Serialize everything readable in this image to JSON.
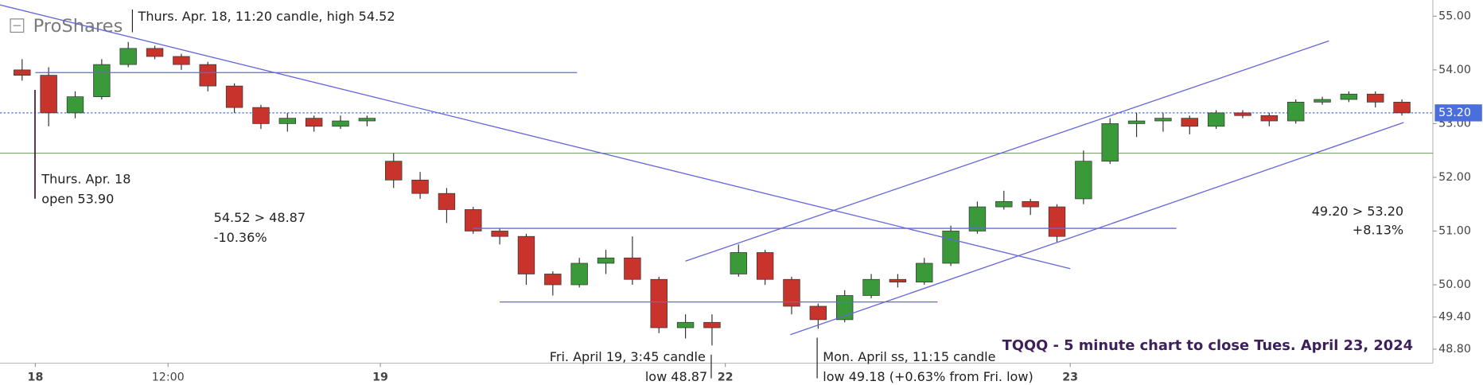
{
  "watermark": "ProShares",
  "chart_data": {
    "type": "candlestick",
    "title": "TQQQ - 5 minute chart to close Tues. April 23, 2024",
    "x": [
      -3,
      3,
      9,
      15,
      21,
      27,
      33,
      39,
      45,
      51,
      57,
      63,
      69,
      75,
      81,
      87,
      93,
      99,
      105,
      111,
      117,
      123,
      129,
      135,
      141,
      147,
      153,
      159,
      165,
      171,
      177,
      183,
      189,
      195,
      201,
      207,
      213,
      219,
      225,
      231,
      237,
      243,
      249,
      255,
      261,
      267,
      273,
      279,
      285,
      291,
      297,
      303,
      309
    ],
    "open": [
      54.0,
      53.9,
      53.2,
      53.5,
      54.1,
      54.4,
      54.25,
      54.1,
      53.7,
      53.3,
      53.0,
      53.1,
      52.95,
      53.05,
      52.3,
      51.95,
      51.7,
      51.4,
      51.0,
      50.9,
      50.2,
      50.0,
      50.4,
      50.5,
      50.1,
      49.2,
      49.3,
      50.2,
      50.6,
      50.1,
      49.6,
      49.35,
      49.8,
      50.1,
      50.05,
      50.4,
      51.0,
      51.45,
      51.55,
      51.45,
      51.6,
      52.3,
      53.0,
      53.05,
      53.1,
      52.95,
      53.2,
      53.15,
      53.05,
      53.4,
      53.45,
      53.55,
      53.4
    ],
    "high": [
      54.2,
      54.05,
      53.6,
      54.2,
      54.52,
      54.45,
      54.3,
      54.15,
      53.75,
      53.35,
      53.2,
      53.15,
      53.15,
      53.15,
      52.45,
      52.1,
      51.8,
      51.45,
      51.05,
      50.95,
      50.25,
      50.5,
      50.65,
      50.9,
      50.15,
      49.45,
      49.45,
      50.75,
      50.65,
      50.15,
      49.65,
      49.9,
      50.2,
      50.2,
      50.5,
      51.1,
      51.55,
      51.75,
      51.6,
      51.5,
      52.5,
      53.1,
      53.2,
      53.2,
      53.15,
      53.25,
      53.25,
      53.2,
      53.45,
      53.5,
      53.6,
      53.6,
      53.45
    ],
    "low": [
      53.8,
      52.95,
      53.1,
      53.45,
      54.05,
      54.2,
      54.0,
      53.6,
      53.2,
      52.9,
      52.85,
      52.85,
      52.9,
      52.95,
      51.8,
      51.6,
      51.15,
      50.95,
      50.75,
      50.0,
      49.8,
      49.95,
      50.2,
      50.0,
      49.1,
      49.0,
      48.87,
      50.15,
      50.0,
      49.45,
      49.18,
      49.3,
      49.75,
      49.95,
      50.0,
      50.35,
      50.95,
      51.4,
      51.3,
      50.8,
      51.5,
      52.25,
      52.75,
      52.85,
      52.8,
      52.9,
      53.1,
      52.95,
      53.0,
      53.35,
      53.4,
      53.3,
      53.15
    ],
    "close": [
      53.9,
      53.2,
      53.5,
      54.1,
      54.4,
      54.25,
      54.1,
      53.7,
      53.3,
      53.0,
      53.1,
      52.95,
      53.05,
      53.1,
      51.95,
      51.7,
      51.4,
      51.0,
      50.9,
      50.2,
      50.0,
      50.4,
      50.5,
      50.1,
      49.2,
      49.3,
      49.2,
      50.6,
      50.1,
      49.6,
      49.35,
      49.8,
      50.1,
      50.05,
      50.4,
      51.0,
      51.45,
      51.55,
      51.45,
      50.9,
      52.3,
      53.0,
      53.05,
      53.1,
      52.95,
      53.2,
      53.15,
      53.05,
      53.4,
      53.45,
      53.55,
      53.4,
      53.2
    ],
    "up_color": "#3a9a3a",
    "down_color": "#c8342c",
    "xlim": [
      -8,
      316
    ],
    "xticks": [
      {
        "value": 0,
        "label": "18"
      },
      {
        "value": 30,
        "label": "12:00"
      },
      {
        "value": 78,
        "label": "19"
      },
      {
        "value": 156,
        "label": "22"
      },
      {
        "value": 234,
        "label": "23"
      }
    ],
    "ylim": [
      48.54,
      55.3
    ],
    "yticks": [
      {
        "value": 55,
        "label": "55.00"
      },
      {
        "value": 54,
        "label": "54.00"
      },
      {
        "value": 53,
        "label": "53.00"
      },
      {
        "value": 52,
        "label": "52.00"
      },
      {
        "value": 51,
        "label": "51.00"
      },
      {
        "value": 50,
        "label": "50.00"
      },
      {
        "value": 49.4,
        "label": "49.40"
      },
      {
        "value": 48.8,
        "label": "48.80"
      }
    ],
    "last_price": {
      "value": 53.2,
      "label": "53.20"
    },
    "last_price_color": "#4a6fdc",
    "reference_line": 52.45,
    "reference_color": "#7ba36a",
    "trendline_color": "#6666dd",
    "trendlines": [
      {
        "x": [
          -8,
          234
        ],
        "y": [
          55.21,
          50.3
        ]
      },
      {
        "x": [
          0,
          122.5
        ],
        "y": [
          53.95,
          53.95
        ]
      },
      {
        "x": [
          99,
          258
        ],
        "y": [
          51.05,
          51.05
        ]
      },
      {
        "x": [
          105,
          204
        ],
        "y": [
          49.68,
          49.68
        ]
      },
      {
        "x": [
          147,
          292.5
        ],
        "y": [
          50.44,
          54.54
        ]
      },
      {
        "x": [
          170.7,
          309.4
        ],
        "y": [
          49.07,
          53.02
        ]
      }
    ],
    "annotations": [
      "Thurs. Apr. 18, 11:20 candle, high 54.52",
      "Thurs. Apr. 18",
      "open 53.90",
      "54.52 > 48.87",
      "-10.36%",
      "Fri. April 19, 3:45 candle",
      "low 48.87",
      "Mon. April ss, 11:15 candle",
      "low 49.18 (+0.63% from Fri. low)",
      "49.20 > 53.20",
      "+8.13%"
    ]
  }
}
